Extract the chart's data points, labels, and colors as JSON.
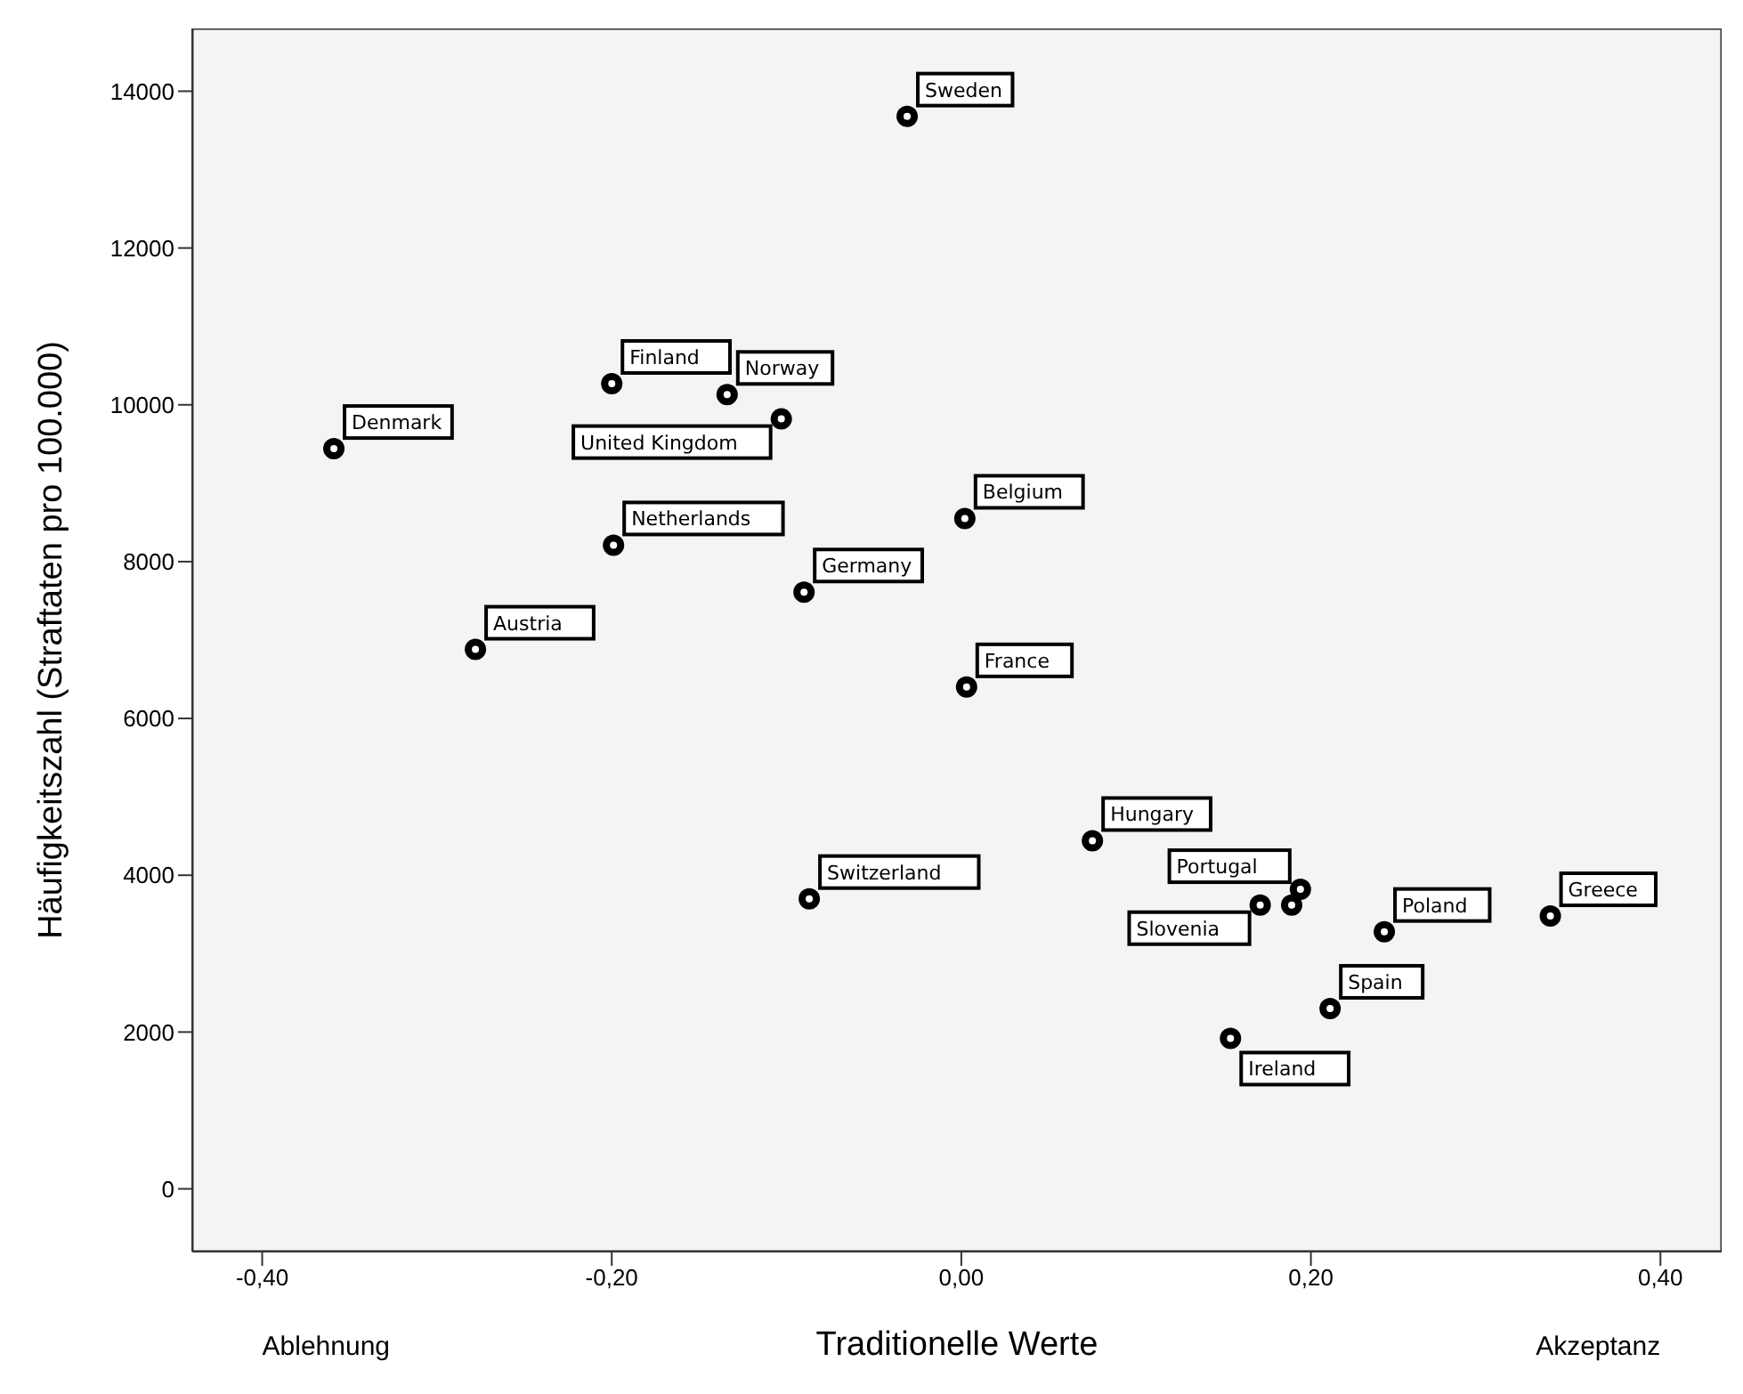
{
  "chart_data": {
    "type": "scatter",
    "xlabel": "Traditionelle Werte",
    "ylabel": "Häufigkeitszahl (Straftaten pro 100.000)",
    "annotations": [
      "Ablehnung",
      "Akzeptanz"
    ],
    "x": [
      -0.359,
      -0.278,
      -0.2,
      -0.199,
      -0.103,
      -0.134,
      -0.09,
      -0.087,
      -0.031,
      0.002,
      0.003,
      0.075,
      0.154,
      0.171,
      0.189,
      0.194,
      0.211,
      0.242,
      0.337
    ],
    "series": [
      {
        "color": "#000000",
        "values": [
          9440,
          6880,
          10270,
          8210,
          9820,
          10130,
          7610,
          3700,
          13680,
          8550,
          6400,
          4440,
          1920,
          3620,
          3620,
          3820,
          2300,
          3280,
          3480
        ],
        "value_labels": [
          "Denmark",
          "Austria",
          "Finland",
          "Netherlands",
          "United Kingdom",
          "Norway",
          "Germany",
          "Switzerland",
          "Sweden",
          "Belgium",
          "France",
          "Hungary",
          "Ireland",
          "Slovenia",
          null,
          "Portugal",
          "Spain",
          "Poland",
          "Greece"
        ]
      }
    ],
    "xlim": [
      -0.44,
      0.435
    ],
    "xticks": [
      {
        "value": -0.4,
        "label": "-0,40"
      },
      {
        "value": -0.2,
        "label": "-0,20"
      },
      {
        "value": 0,
        "label": "0,00"
      },
      {
        "value": 0.2,
        "label": "0,20"
      },
      {
        "value": 0.4,
        "label": "0,40"
      }
    ],
    "ylim": [
      -800,
      14800
    ],
    "yticks": [
      0,
      2000,
      4000,
      6000,
      8000,
      10000,
      12000,
      14000
    ],
    "marker": "circle",
    "grid": false,
    "legend": false
  }
}
